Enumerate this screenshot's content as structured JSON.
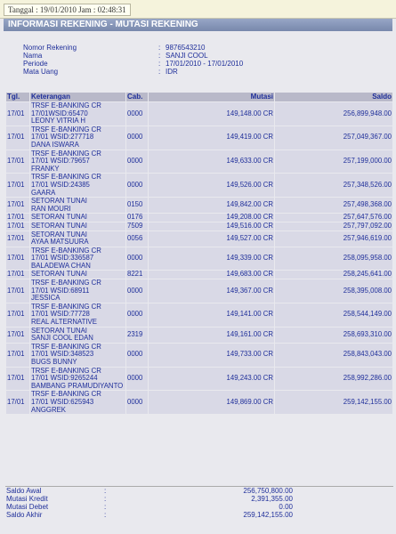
{
  "header": {
    "datetime": "Tanggal : 19/01/2010 Jam : 02:48:31",
    "title": "INFORMASI REKENING - MUTASI REKENING"
  },
  "info": [
    {
      "label": "Nomor Rekening",
      "sep": ":",
      "value": "9876543210"
    },
    {
      "label": "Nama",
      "sep": ":",
      "value": "SANJI COOL"
    },
    {
      "label": "Periode",
      "sep": ":",
      "value": "17/01/2010 - 17/01/2010"
    },
    {
      "label": "Mata Uang",
      "sep": ":",
      "value": "IDR"
    }
  ],
  "table": {
    "columns": [
      "Tgl.",
      "Keterangan",
      "Cab.",
      "Mutasi",
      "Saldo"
    ],
    "rows": [
      {
        "tgl": "17/01",
        "keterangan": [
          "TRSF E-BANKING CR",
          "17/01WSID:65470",
          "LEONY VITRIA H"
        ],
        "cab": "0000",
        "mutasi": "149,148.00 CR",
        "saldo": "256,899,948.00"
      },
      {
        "tgl": "17/01",
        "keterangan": [
          "TRSF E-BANKING CR",
          "17/01 WSID:277718",
          "DANA ISWARA"
        ],
        "cab": "0000",
        "mutasi": "149,419.00 CR",
        "saldo": "257,049,367.00"
      },
      {
        "tgl": "17/01",
        "keterangan": [
          "TRSF E-BANKING CR",
          "17/01 WSID:79657",
          "FRANKY"
        ],
        "cab": "0000",
        "mutasi": "149,633.00 CR",
        "saldo": "257,199,000.00"
      },
      {
        "tgl": "17/01",
        "keterangan": [
          "TRSF E-BANKING CR",
          "17/01 WSID:24385",
          "GAARA"
        ],
        "cab": "0000",
        "mutasi": "149,526.00 CR",
        "saldo": "257,348,526.00"
      },
      {
        "tgl": "17/01",
        "keterangan": [
          "SETORAN TUNAI",
          "RAN MOURI"
        ],
        "cab": "0150",
        "mutasi": "149,842.00 CR",
        "saldo": "257,498,368.00"
      },
      {
        "tgl": "17/01",
        "keterangan": [
          "SETORAN TUNAI"
        ],
        "cab": "0176",
        "mutasi": "149,208.00 CR",
        "saldo": "257,647,576.00"
      },
      {
        "tgl": "17/01",
        "keterangan": [
          "SETORAN TUNAI"
        ],
        "cab": "7509",
        "mutasi": "149,516.00 CR",
        "saldo": "257,797,092.00"
      },
      {
        "tgl": "17/01",
        "keterangan": [
          "SETORAN TUNAI",
          "AYAA MATSUURA"
        ],
        "cab": "0056",
        "mutasi": "149,527.00 CR",
        "saldo": "257,946,619.00"
      },
      {
        "tgl": "17/01",
        "keterangan": [
          "TRSF E-BANKING CR",
          "17/01 WSID:336587",
          "BALADEWA CHAN"
        ],
        "cab": "0000",
        "mutasi": "149,339.00 CR",
        "saldo": "258,095,958.00"
      },
      {
        "tgl": "17/01",
        "keterangan": [
          "SETORAN TUNAI"
        ],
        "cab": "8221",
        "mutasi": "149,683.00 CR",
        "saldo": "258,245,641.00"
      },
      {
        "tgl": "17/01",
        "keterangan": [
          "TRSF E-BANKING CR",
          "17/01 WSID:68911",
          "JESSICA"
        ],
        "cab": "0000",
        "mutasi": "149,367.00 CR",
        "saldo": "258,395,008.00"
      },
      {
        "tgl": "17/01",
        "keterangan": [
          "TRSF E-BANKING CR",
          "17/01 WSID:77728",
          "REAL ALTERNATIVE"
        ],
        "cab": "0000",
        "mutasi": "149,141.00 CR",
        "saldo": "258,544,149.00"
      },
      {
        "tgl": "17/01",
        "keterangan": [
          "SETORAN TUNAI",
          "SANJI COOL EDAN"
        ],
        "cab": "2319",
        "mutasi": "149,161.00 CR",
        "saldo": "258,693,310.00"
      },
      {
        "tgl": "17/01",
        "keterangan": [
          "TRSF E-BANKING CR",
          "17/01 WSID:348523",
          "BUGS BUNNY"
        ],
        "cab": "0000",
        "mutasi": "149,733.00 CR",
        "saldo": "258,843,043.00"
      },
      {
        "tgl": "17/01",
        "keterangan": [
          "TRSF E-BANKING CR",
          "17/01 WSID:9265244",
          "BAMBANG PRAMUDIYANTO"
        ],
        "cab": "0000",
        "mutasi": "149,243.00 CR",
        "saldo": "258,992,286.00"
      },
      {
        "tgl": "17/01",
        "keterangan": [
          "TRSF E-BANKING CR",
          "17/01 WSID:625943",
          "ANGGREK"
        ],
        "cab": "0000",
        "mutasi": "149,869.00 CR",
        "saldo": "259,142,155.00"
      }
    ]
  },
  "summary": [
    {
      "label": "Saldo Awal",
      "sep": ":",
      "value": "256,750,800.00"
    },
    {
      "label": "Mutasi Kredit",
      "sep": ":",
      "value": "2,391,355.00"
    },
    {
      "label": "Mutasi Debet",
      "sep": ":",
      "value": "0.00"
    },
    {
      "label": "Saldo Akhir",
      "sep": ":",
      "value": "259,142,155.00"
    }
  ]
}
